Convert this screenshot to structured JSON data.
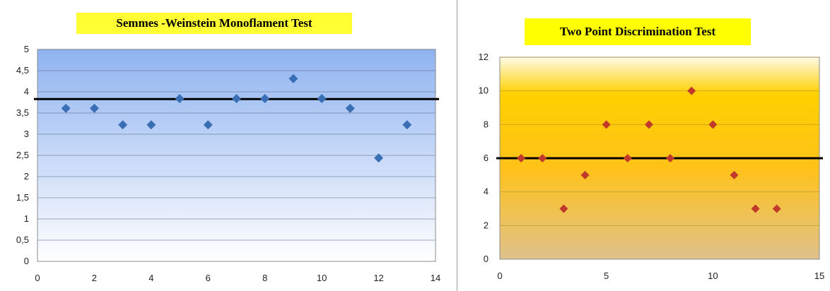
{
  "chart_data": [
    {
      "type": "scatter",
      "title": "Semmes -Weinstein Monoflament Test",
      "title_bg": "#ffff33",
      "xlim": [
        0,
        14
      ],
      "ylim": [
        0,
        5
      ],
      "x_ticks": [
        "0",
        "2",
        "4",
        "6",
        "8",
        "10",
        "12",
        "14"
      ],
      "y_ticks": [
        "0",
        "0,5",
        "1",
        "1,5",
        "2",
        "2,5",
        "3",
        "3,5",
        "4",
        "4,5",
        "5"
      ],
      "x_tick_values": [
        0,
        2,
        4,
        6,
        8,
        10,
        12,
        14
      ],
      "y_tick_values": [
        0,
        0.5,
        1,
        1.5,
        2,
        2.5,
        3,
        3.5,
        4,
        4.5,
        5
      ],
      "reference_line": 3.83,
      "marker_color": "#3a6fb5",
      "plot_bg_top": "#8fb3f0",
      "plot_bg_bottom": "#ffffff",
      "grid": true,
      "series": [
        {
          "x": [
            1,
            2,
            3,
            4,
            5,
            6,
            7,
            8,
            9,
            10,
            11,
            12,
            13
          ],
          "y": [
            3.61,
            3.61,
            3.22,
            3.22,
            3.84,
            3.22,
            3.84,
            3.84,
            4.31,
            3.84,
            3.61,
            2.44,
            3.22
          ]
        }
      ]
    },
    {
      "type": "scatter",
      "title": "Two Point Discrimination Test",
      "title_bg": "#ffff00",
      "xlim": [
        0,
        15
      ],
      "ylim": [
        0,
        12
      ],
      "x_ticks": [
        "0",
        "5",
        "10",
        "15"
      ],
      "y_ticks": [
        "0",
        "2",
        "4",
        "6",
        "8",
        "10",
        "12"
      ],
      "x_tick_values": [
        0,
        5,
        10,
        15
      ],
      "y_tick_values": [
        0,
        2,
        4,
        6,
        8,
        10,
        12
      ],
      "reference_line": 6,
      "marker_color": "#c0392b",
      "plot_bg_top": "#fffbe8",
      "plot_bg_bottom": "#dfc28c",
      "grid": true,
      "series": [
        {
          "x": [
            1,
            2,
            3,
            4,
            5,
            6,
            7,
            8,
            9,
            10,
            11,
            12,
            13
          ],
          "y": [
            6,
            6,
            3,
            5,
            8,
            6,
            8,
            6,
            10,
            8,
            5,
            3,
            3
          ]
        }
      ]
    }
  ]
}
